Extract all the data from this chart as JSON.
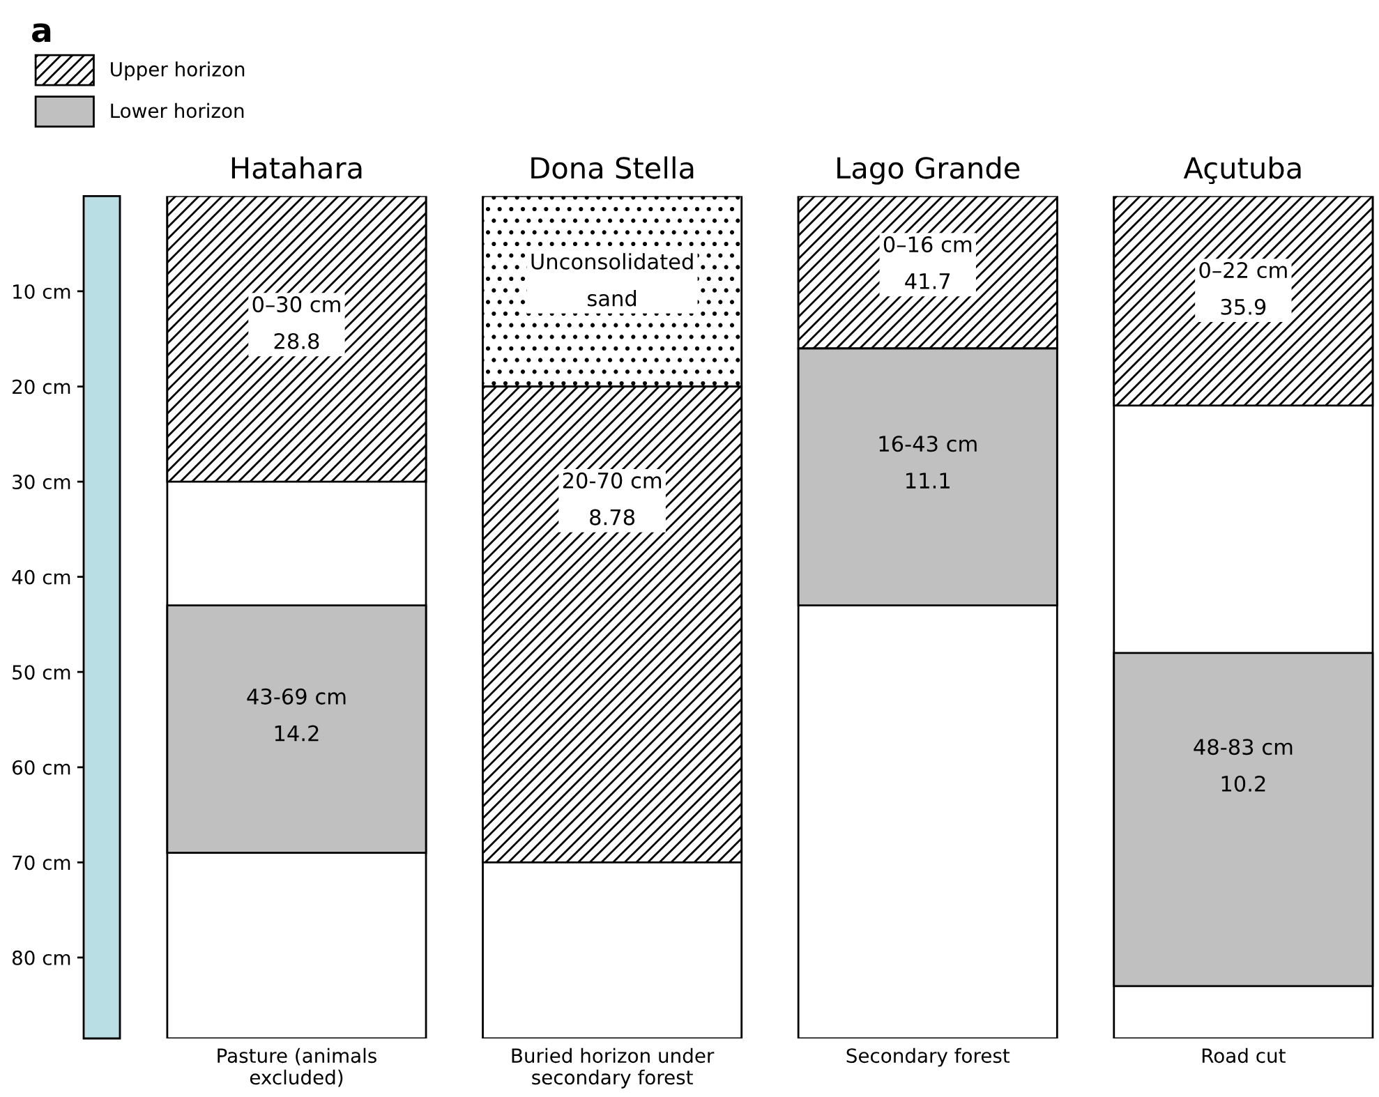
{
  "chart_data": {
    "type": "bar",
    "title": "a",
    "categories": [
      "Hatahara",
      "Dona Stella",
      "Lago Grande",
      "Açutuba"
    ],
    "series": [
      {
        "name": "Upper horizon",
        "color": "#000000",
        "values": [
          30,
          50,
          16,
          22
        ],
        "base": [
          0,
          20,
          0,
          0
        ]
      },
      {
        "name": "Lower horizon",
        "color": "#c0c0c0",
        "values": [
          26,
          null,
          27,
          35
        ],
        "base": [
          43,
          null,
          16,
          48
        ]
      },
      {
        "color": "#000000",
        "values": [
          null,
          20,
          null,
          null
        ],
        "base": [
          null,
          0,
          null,
          null
        ]
      }
    ],
    "ylim": [
      88.5,
      0
    ],
    "yticks": [
      {
        "value": 10,
        "label": "10 cm"
      },
      {
        "value": 20,
        "label": "20 cm"
      },
      {
        "value": 30,
        "label": "30 cm"
      },
      {
        "value": 40,
        "label": "40 cm"
      },
      {
        "value": 50,
        "label": "50 cm"
      },
      {
        "value": 60,
        "label": "60 cm"
      },
      {
        "value": 70,
        "label": "70 cm"
      },
      {
        "value": 80,
        "label": "80 cm"
      }
    ],
    "legend": "top left",
    "grid": false,
    "annotations": [
      "0–30 cm\n28.8",
      "43-69 cm\n14.2",
      "Unconsolidated\nsand",
      "20-70 cm\n8.78",
      "0–16 cm\n41.7",
      "16-43 cm\n11.1",
      "0–22 cm\n35.9",
      "48-83 cm\n10.2",
      "Pasture (animals\nexcluded)",
      "Buried horizon under\nsecondary forest",
      "Secondary forest",
      "Road cut"
    ]
  }
}
